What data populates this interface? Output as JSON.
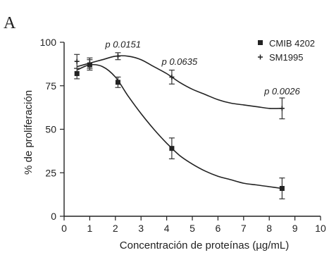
{
  "chart_data": {
    "type": "line",
    "panel_label": "A",
    "xlabel": "Concentración de proteínas (µg/mL)",
    "ylabel": "% de proliferación",
    "xlim": [
      0,
      10
    ],
    "ylim": [
      0,
      100
    ],
    "xticks": [
      0,
      1,
      2,
      3,
      4,
      5,
      6,
      7,
      8,
      9,
      10
    ],
    "yticks": [
      0,
      25,
      50,
      75,
      100
    ],
    "grid": false,
    "legend_position": "top-right",
    "series": [
      {
        "name": "CMIB 4202",
        "marker": "square",
        "x": [
          0.5,
          1.0,
          2.1,
          4.2,
          8.5
        ],
        "y": [
          82,
          87,
          77,
          39,
          16
        ],
        "err": [
          3,
          3,
          3,
          6,
          6
        ],
        "curve_x": [
          0.5,
          1.0,
          1.5,
          2.0,
          2.5,
          3.0,
          3.5,
          4.0,
          4.5,
          5.0,
          5.5,
          6.0,
          6.5,
          7.0,
          7.5,
          8.0,
          8.5
        ],
        "curve_y": [
          84,
          87,
          86,
          80,
          69,
          59,
          50,
          42,
          35,
          30,
          26,
          23,
          21,
          19,
          18,
          17,
          16
        ]
      },
      {
        "name": "SM1995",
        "marker": "plus",
        "x": [
          0.5,
          1.0,
          2.1,
          4.2,
          8.5
        ],
        "y": [
          89,
          88,
          92,
          80,
          62
        ],
        "err": [
          4,
          3,
          2,
          4,
          6
        ],
        "curve_x": [
          0.5,
          1.0,
          1.5,
          2.0,
          2.5,
          3.0,
          3.5,
          4.0,
          4.5,
          5.0,
          5.5,
          6.0,
          6.5,
          7.0,
          7.5,
          8.0,
          8.5
        ],
        "curve_y": [
          86,
          88,
          90,
          92,
          92,
          90,
          86,
          82,
          77,
          73,
          70,
          67,
          65,
          64,
          63,
          62,
          62
        ]
      }
    ],
    "annotations": [
      {
        "text": "p 0.0151",
        "x": 2.3,
        "y": 97
      },
      {
        "text": "p 0.0635",
        "x": 4.5,
        "y": 87
      },
      {
        "text": "p 0.0026",
        "x": 8.5,
        "y": 70
      }
    ]
  }
}
